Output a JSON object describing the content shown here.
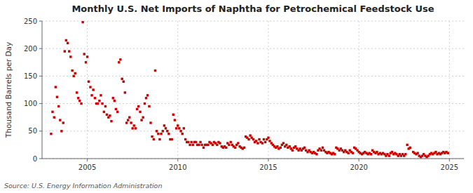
{
  "chart_data": {
    "type": "scatter",
    "title": "Monthly U.S. Net Imports of Naphtha for Petrochemical Feedstock Use",
    "ylabel": "Thousand Barrels per Day",
    "source": "Source: U.S. Energy Information Administration",
    "color": "#cc0000",
    "marker": "square",
    "grid": true,
    "xlim": [
      2002.5,
      2025.8
    ],
    "xticks": [
      2005,
      2010,
      2015,
      2020,
      2025
    ],
    "ylim": [
      0,
      250
    ],
    "yticks": [
      0,
      50,
      100,
      150,
      200,
      250
    ],
    "x": [
      2003.0,
      2003.08,
      2003.17,
      2003.25,
      2003.33,
      2003.42,
      2003.5,
      2003.58,
      2003.67,
      2003.75,
      2003.83,
      2003.92,
      2004.0,
      2004.08,
      2004.17,
      2004.25,
      2004.33,
      2004.42,
      2004.5,
      2004.58,
      2004.67,
      2004.75,
      2004.83,
      2004.92,
      2005.0,
      2005.08,
      2005.17,
      2005.25,
      2005.33,
      2005.42,
      2005.5,
      2005.58,
      2005.67,
      2005.75,
      2005.83,
      2005.92,
      2006.0,
      2006.08,
      2006.17,
      2006.25,
      2006.33,
      2006.42,
      2006.5,
      2006.58,
      2006.67,
      2006.75,
      2006.83,
      2006.92,
      2007.0,
      2007.08,
      2007.17,
      2007.25,
      2007.33,
      2007.42,
      2007.5,
      2007.58,
      2007.67,
      2007.75,
      2007.83,
      2007.92,
      2008.0,
      2008.08,
      2008.17,
      2008.25,
      2008.33,
      2008.42,
      2008.5,
      2008.58,
      2008.67,
      2008.75,
      2008.83,
      2008.92,
      2009.0,
      2009.08,
      2009.17,
      2009.25,
      2009.33,
      2009.42,
      2009.5,
      2009.58,
      2009.67,
      2009.75,
      2009.83,
      2009.92,
      2010.0,
      2010.08,
      2010.17,
      2010.25,
      2010.33,
      2010.42,
      2010.5,
      2010.58,
      2010.67,
      2010.75,
      2010.83,
      2010.92,
      2011.0,
      2011.08,
      2011.17,
      2011.25,
      2011.33,
      2011.42,
      2011.5,
      2011.58,
      2011.67,
      2011.75,
      2011.83,
      2011.92,
      2012.0,
      2012.08,
      2012.17,
      2012.25,
      2012.33,
      2012.42,
      2012.5,
      2012.58,
      2012.67,
      2012.75,
      2012.83,
      2012.92,
      2013.0,
      2013.08,
      2013.17,
      2013.25,
      2013.33,
      2013.42,
      2013.5,
      2013.58,
      2013.67,
      2013.75,
      2013.83,
      2013.92,
      2014.0,
      2014.08,
      2014.17,
      2014.25,
      2014.33,
      2014.42,
      2014.5,
      2014.58,
      2014.67,
      2014.75,
      2014.83,
      2014.92,
      2015.0,
      2015.08,
      2015.17,
      2015.25,
      2015.33,
      2015.42,
      2015.5,
      2015.58,
      2015.67,
      2015.75,
      2015.83,
      2015.92,
      2016.0,
      2016.08,
      2016.17,
      2016.25,
      2016.33,
      2016.42,
      2016.5,
      2016.58,
      2016.67,
      2016.75,
      2016.83,
      2016.92,
      2017.0,
      2017.08,
      2017.17,
      2017.25,
      2017.33,
      2017.42,
      2017.5,
      2017.58,
      2017.67,
      2017.75,
      2017.83,
      2017.92,
      2018.0,
      2018.08,
      2018.17,
      2018.25,
      2018.33,
      2018.42,
      2018.5,
      2018.58,
      2018.67,
      2018.75,
      2018.83,
      2018.92,
      2019.0,
      2019.08,
      2019.17,
      2019.25,
      2019.33,
      2019.42,
      2019.5,
      2019.58,
      2019.67,
      2019.75,
      2019.83,
      2019.92,
      2020.0,
      2020.08,
      2020.17,
      2020.25,
      2020.33,
      2020.42,
      2020.5,
      2020.58,
      2020.67,
      2020.75,
      2020.83,
      2020.92,
      2021.0,
      2021.08,
      2021.17,
      2021.25,
      2021.33,
      2021.42,
      2021.5,
      2021.58,
      2021.67,
      2021.75,
      2021.83,
      2021.92,
      2022.0,
      2022.08,
      2022.17,
      2022.25,
      2022.33,
      2022.42,
      2022.5,
      2022.58,
      2022.67,
      2022.75,
      2022.83,
      2023.0,
      2023.08,
      2023.17,
      2023.25,
      2023.33,
      2023.42,
      2023.5,
      2023.58,
      2023.67,
      2023.75,
      2023.83,
      2023.92,
      2024.0,
      2024.08,
      2024.17,
      2024.25,
      2024.33,
      2024.42,
      2024.5,
      2024.58,
      2024.67,
      2024.75,
      2024.83,
      2024.92
    ],
    "values": [
      45,
      85,
      75,
      130,
      112,
      95,
      70,
      50,
      65,
      195,
      215,
      210,
      195,
      185,
      160,
      150,
      155,
      120,
      110,
      105,
      100,
      248,
      190,
      175,
      185,
      140,
      130,
      115,
      125,
      110,
      100,
      100,
      105,
      115,
      100,
      85,
      95,
      80,
      75,
      78,
      68,
      110,
      105,
      90,
      85,
      175,
      180,
      145,
      140,
      120,
      65,
      70,
      75,
      65,
      55,
      60,
      55,
      90,
      95,
      85,
      70,
      75,
      100,
      110,
      115,
      95,
      65,
      40,
      35,
      160,
      50,
      45,
      35,
      45,
      50,
      60,
      55,
      50,
      45,
      35,
      35,
      80,
      70,
      55,
      60,
      55,
      50,
      45,
      55,
      35,
      30,
      30,
      25,
      30,
      25,
      30,
      30,
      25,
      25,
      30,
      25,
      20,
      25,
      25,
      25,
      30,
      28,
      25,
      30,
      28,
      25,
      30,
      28,
      22,
      20,
      22,
      20,
      28,
      25,
      30,
      25,
      22,
      20,
      25,
      28,
      22,
      20,
      18,
      20,
      40,
      38,
      35,
      42,
      38,
      35,
      30,
      32,
      28,
      35,
      30,
      28,
      35,
      30,
      35,
      38,
      32,
      28,
      25,
      22,
      20,
      22,
      18,
      20,
      25,
      28,
      22,
      25,
      20,
      22,
      18,
      15,
      20,
      22,
      18,
      15,
      18,
      15,
      18,
      20,
      15,
      12,
      15,
      12,
      10,
      12,
      10,
      8,
      15,
      18,
      15,
      20,
      15,
      12,
      10,
      12,
      10,
      8,
      10,
      8,
      20,
      18,
      15,
      18,
      15,
      12,
      15,
      12,
      10,
      15,
      12,
      10,
      20,
      18,
      15,
      12,
      10,
      8,
      10,
      12,
      10,
      8,
      10,
      8,
      15,
      12,
      10,
      12,
      8,
      10,
      8,
      10,
      8,
      5,
      8,
      5,
      10,
      12,
      8,
      10,
      8,
      5,
      8,
      5,
      8,
      5,
      8,
      25,
      18,
      20,
      12,
      10,
      8,
      10,
      5,
      3,
      5,
      8,
      5,
      3,
      5,
      8,
      10,
      8,
      10,
      12,
      8,
      10,
      8,
      10,
      12,
      10,
      12,
      10
    ]
  }
}
